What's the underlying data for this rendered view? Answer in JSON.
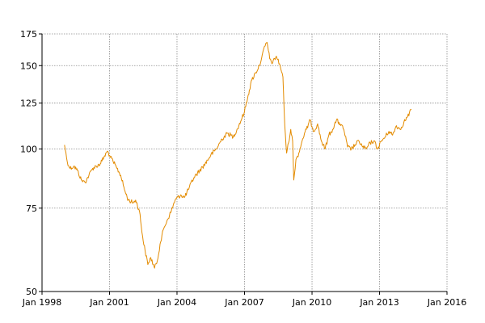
{
  "chart_data": {
    "type": "line",
    "title": "",
    "xlabel": "",
    "ylabel": "",
    "y_scale": "log",
    "ylim": [
      50,
      175
    ],
    "xlim": [
      "1998-01-01",
      "2016-01-01"
    ],
    "grid": true,
    "legend": "none",
    "y_ticks": [
      {
        "value": 50,
        "label": "50"
      },
      {
        "value": 75,
        "label": "75"
      },
      {
        "value": 100,
        "label": "100"
      },
      {
        "value": 125,
        "label": "125"
      },
      {
        "value": 150,
        "label": "150"
      },
      {
        "value": 175,
        "label": "175"
      }
    ],
    "x_ticks": [
      {
        "value": "1998-01-01",
        "label": "Jan 1998"
      },
      {
        "value": "2001-01-01",
        "label": "Jan 2001"
      },
      {
        "value": "2004-01-01",
        "label": "Jan 2004"
      },
      {
        "value": "2007-01-01",
        "label": "Jan 2007"
      },
      {
        "value": "2010-01-01",
        "label": "Jan 2010"
      },
      {
        "value": "2013-01-01",
        "label": "Jan 2013"
      },
      {
        "value": "2016-01-01",
        "label": "Jan 2016"
      }
    ],
    "series": [
      {
        "color": "#e38b00",
        "points": [
          [
            "1999-01-01",
            102
          ],
          [
            "1999-02-15",
            94
          ],
          [
            "1999-04-01",
            91
          ],
          [
            "1999-06-01",
            92
          ],
          [
            "1999-08-01",
            90
          ],
          [
            "1999-10-01",
            86
          ],
          [
            "1999-12-01",
            85
          ],
          [
            "2000-02-01",
            88
          ],
          [
            "2000-04-01",
            91
          ],
          [
            "2000-06-01",
            92
          ],
          [
            "2000-08-01",
            93
          ],
          [
            "2000-10-01",
            96
          ],
          [
            "2000-12-01",
            99
          ],
          [
            "2001-01-15",
            96
          ],
          [
            "2001-03-01",
            94
          ],
          [
            "2001-05-01",
            91
          ],
          [
            "2001-07-01",
            88
          ],
          [
            "2001-09-01",
            82
          ],
          [
            "2001-11-01",
            78
          ],
          [
            "2002-01-15",
            77
          ],
          [
            "2002-03-01",
            78
          ],
          [
            "2002-05-01",
            74
          ],
          [
            "2002-07-01",
            64
          ],
          [
            "2002-08-01",
            61
          ],
          [
            "2002-09-15",
            57
          ],
          [
            "2002-11-01",
            59
          ],
          [
            "2003-01-01",
            56
          ],
          [
            "2003-02-15",
            58
          ],
          [
            "2003-04-01",
            63
          ],
          [
            "2003-06-01",
            68
          ],
          [
            "2003-08-01",
            71
          ],
          [
            "2003-10-01",
            74
          ],
          [
            "2003-12-01",
            78
          ],
          [
            "2004-03-01",
            80
          ],
          [
            "2004-05-01",
            79
          ],
          [
            "2004-07-01",
            82
          ],
          [
            "2004-10-01",
            87
          ],
          [
            "2005-01-01",
            90
          ],
          [
            "2005-04-01",
            93
          ],
          [
            "2005-07-01",
            97
          ],
          [
            "2005-10-01",
            100
          ],
          [
            "2006-01-01",
            105
          ],
          [
            "2006-04-01",
            108
          ],
          [
            "2006-07-01",
            106
          ],
          [
            "2006-10-01",
            112
          ],
          [
            "2007-01-01",
            120
          ],
          [
            "2007-03-01",
            130
          ],
          [
            "2007-05-01",
            140
          ],
          [
            "2007-07-01",
            145
          ],
          [
            "2007-09-01",
            150
          ],
          [
            "2007-10-15",
            158
          ],
          [
            "2007-12-01",
            165
          ],
          [
            "2008-01-01",
            168
          ],
          [
            "2008-02-15",
            155
          ],
          [
            "2008-04-01",
            152
          ],
          [
            "2008-06-01",
            157
          ],
          [
            "2008-08-01",
            150
          ],
          [
            "2008-09-15",
            142
          ],
          [
            "2008-10-15",
            112
          ],
          [
            "2008-11-15",
            98
          ],
          [
            "2008-12-15",
            103
          ],
          [
            "2009-01-20",
            110
          ],
          [
            "2009-02-20",
            104
          ],
          [
            "2009-03-10",
            86
          ],
          [
            "2009-04-15",
            95
          ],
          [
            "2009-06-01",
            98
          ],
          [
            "2009-08-01",
            105
          ],
          [
            "2009-10-01",
            110
          ],
          [
            "2009-12-01",
            115
          ],
          [
            "2010-02-01",
            109
          ],
          [
            "2010-04-01",
            113
          ],
          [
            "2010-06-01",
            104
          ],
          [
            "2010-08-01",
            100
          ],
          [
            "2010-10-01",
            107
          ],
          [
            "2010-12-01",
            110
          ],
          [
            "2011-02-01",
            115
          ],
          [
            "2011-04-01",
            113
          ],
          [
            "2011-06-01",
            110
          ],
          [
            "2011-08-01",
            101
          ],
          [
            "2011-10-01",
            100
          ],
          [
            "2011-12-01",
            102
          ],
          [
            "2012-02-01",
            104
          ],
          [
            "2012-04-01",
            101
          ],
          [
            "2012-06-01",
            100
          ],
          [
            "2012-08-01",
            103
          ],
          [
            "2012-10-01",
            104
          ],
          [
            "2012-12-01",
            100
          ],
          [
            "2013-02-01",
            104
          ],
          [
            "2013-04-01",
            106
          ],
          [
            "2013-06-01",
            109
          ],
          [
            "2013-08-01",
            107
          ],
          [
            "2013-10-01",
            112
          ],
          [
            "2013-12-01",
            110
          ],
          [
            "2014-02-01",
            114
          ],
          [
            "2014-04-01",
            117
          ],
          [
            "2014-06-01",
            121
          ]
        ]
      }
    ]
  }
}
